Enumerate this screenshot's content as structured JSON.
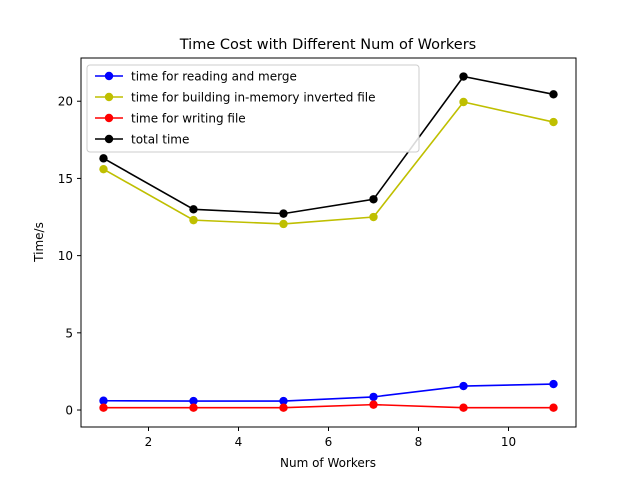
{
  "chart_data": {
    "type": "line",
    "title": "Time Cost with Different Num of Workers",
    "xlabel": "Num of Workers",
    "ylabel": "Time/s",
    "xlim": [
      0.5,
      11.5
    ],
    "ylim": [
      -1.1,
      22.8
    ],
    "xticks": [
      2,
      4,
      6,
      8,
      10
    ],
    "yticks": [
      0,
      5,
      10,
      15,
      20
    ],
    "grid": false,
    "legend_position": "top-left",
    "x": [
      1,
      3,
      5,
      7,
      9,
      11
    ],
    "series": [
      {
        "name": "time for reading and merge",
        "color": "#0000ff",
        "values": [
          0.6,
          0.58,
          0.58,
          0.85,
          1.55,
          1.68
        ]
      },
      {
        "name": "time for building in-memory inverted file",
        "color": "#bfbf00",
        "values": [
          15.6,
          12.3,
          12.05,
          12.5,
          19.95,
          18.65
        ]
      },
      {
        "name": "time for writing file",
        "color": "#ff0000",
        "values": [
          0.15,
          0.15,
          0.15,
          0.35,
          0.15,
          0.15
        ]
      },
      {
        "name": "total time",
        "color": "#000000",
        "values": [
          16.3,
          13.0,
          12.72,
          13.65,
          21.6,
          20.45
        ]
      }
    ]
  }
}
